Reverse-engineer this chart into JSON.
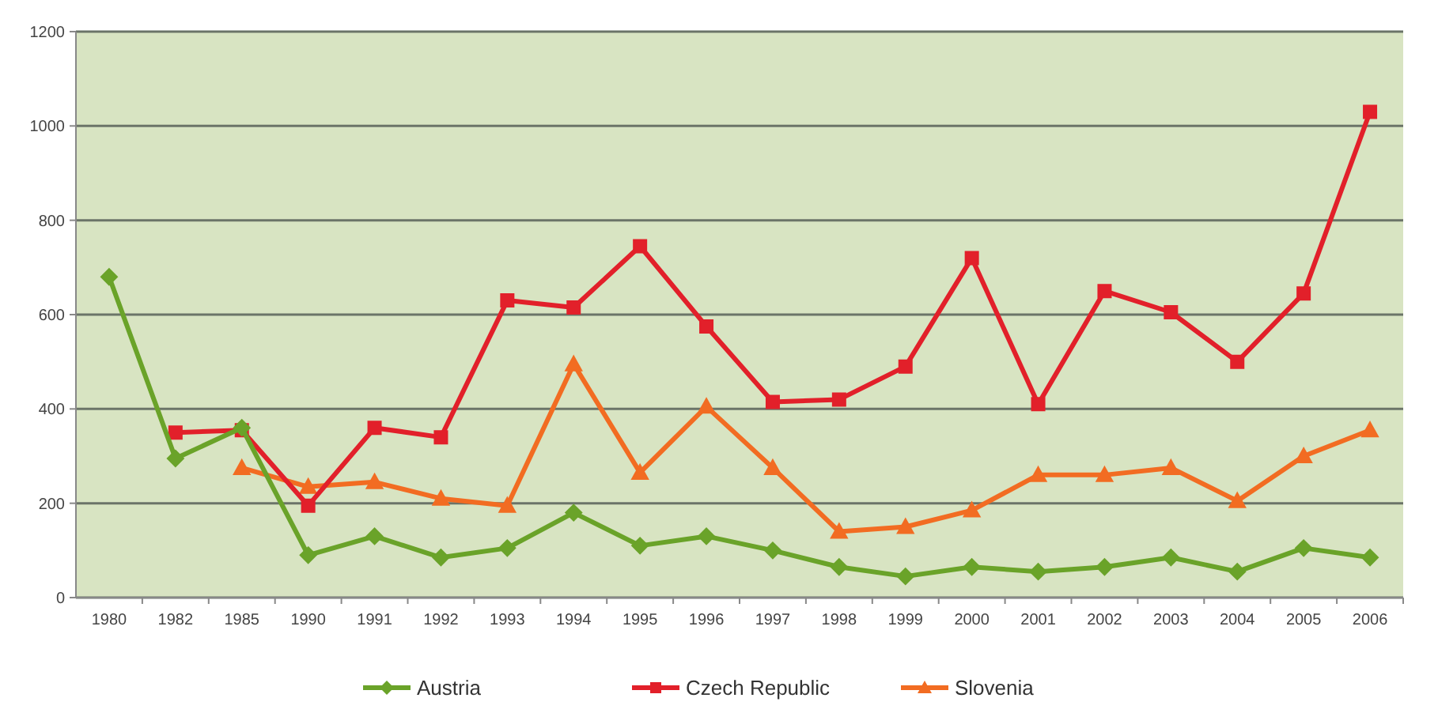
{
  "chart_data": {
    "type": "line",
    "categories": [
      "1980",
      "1982",
      "1985",
      "1990",
      "1991",
      "1992",
      "1993",
      "1994",
      "1995",
      "1996",
      "1997",
      "1998",
      "1999",
      "2000",
      "2001",
      "2002",
      "2003",
      "2004",
      "2005",
      "2006"
    ],
    "series": [
      {
        "name": "Austria",
        "color": "#6aa329",
        "marker": "diamond",
        "values": [
          680,
          295,
          360,
          90,
          130,
          85,
          105,
          180,
          110,
          130,
          100,
          65,
          45,
          65,
          55,
          65,
          85,
          55,
          105,
          85
        ]
      },
      {
        "name": "Czech Republic",
        "color": "#e2202a",
        "marker": "square",
        "values": [
          null,
          350,
          355,
          195,
          360,
          340,
          630,
          615,
          745,
          575,
          415,
          420,
          490,
          720,
          410,
          650,
          605,
          500,
          645,
          1030
        ]
      },
      {
        "name": "Slovenia",
        "color": "#f26c22",
        "marker": "triangle",
        "values": [
          null,
          null,
          275,
          235,
          245,
          210,
          195,
          495,
          265,
          405,
          275,
          140,
          150,
          185,
          260,
          260,
          275,
          205,
          300,
          355
        ]
      }
    ],
    "ylim": [
      0,
      1200
    ],
    "yticks": [
      0,
      200,
      400,
      600,
      800,
      1000,
      1200
    ],
    "grid": "y",
    "legend": "bottom",
    "line_style": "solid"
  }
}
